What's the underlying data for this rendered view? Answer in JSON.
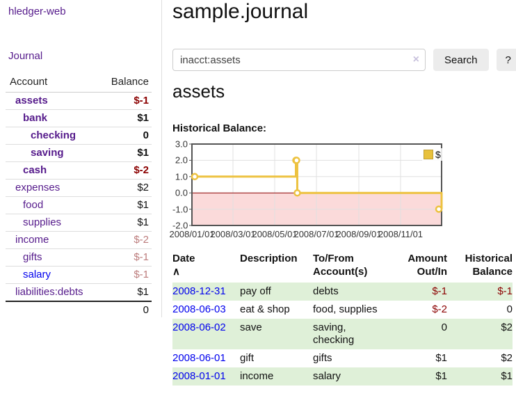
{
  "app": {
    "brand": "hledger-web",
    "nav_journal": "Journal"
  },
  "colors": {
    "link_purple": "#551a8b",
    "link_blue": "#0000ee",
    "negative_strong": "#8b0000",
    "negative_muted": "#bc7c7c",
    "row_green": "#dff0d8",
    "series_gold": "#edc240",
    "negative_region_pink": "#fbdada",
    "zero_line_red": "#8b0000"
  },
  "sidebar": {
    "header": {
      "account": "Account",
      "balance": "Balance"
    },
    "accounts": [
      {
        "name": "assets",
        "balance": "$-1",
        "level": 1,
        "bold": true,
        "balance_style": "neg"
      },
      {
        "name": "bank",
        "balance": "$1",
        "level": 2,
        "bold": true,
        "balance_style": "normal"
      },
      {
        "name": "checking",
        "balance": "0",
        "level": 3,
        "bold": true,
        "balance_style": "normal"
      },
      {
        "name": "saving",
        "balance": "$1",
        "level": 3,
        "bold": true,
        "balance_style": "normal"
      },
      {
        "name": "cash",
        "balance": "$-2",
        "level": 2,
        "bold": true,
        "balance_style": "neg"
      },
      {
        "name": "expenses",
        "balance": "$2",
        "level": 1,
        "bold": false,
        "balance_style": "normal"
      },
      {
        "name": "food",
        "balance": "$1",
        "level": 2,
        "bold": false,
        "balance_style": "normal"
      },
      {
        "name": "supplies",
        "balance": "$1",
        "level": 2,
        "bold": false,
        "balance_style": "normal"
      },
      {
        "name": "income",
        "balance": "$-2",
        "level": 1,
        "bold": false,
        "balance_style": "neg-muted"
      },
      {
        "name": "gifts",
        "balance": "$-1",
        "level": 2,
        "bold": false,
        "balance_style": "neg-muted"
      },
      {
        "name": "salary",
        "balance": "$-1",
        "level": 2,
        "bold": false,
        "balance_style": "neg-muted",
        "name_color": "#0000ee"
      },
      {
        "name": "liabilities:debts",
        "balance": "$1",
        "level": 1,
        "bold": false,
        "balance_style": "normal"
      }
    ],
    "total": "0"
  },
  "header": {
    "title": "sample.journal"
  },
  "search": {
    "value": "inacct:assets",
    "clear_icon": "×",
    "button": "Search",
    "help_button": "?"
  },
  "account_page": {
    "title": "assets",
    "chart_label": "Historical Balance:"
  },
  "chart_data": {
    "type": "line",
    "step": true,
    "title": "Historical Balance",
    "legend": "$",
    "legend_position": "top-right",
    "x_domain": [
      "2008-01-01",
      "2008-12-31"
    ],
    "x_ticks": [
      "2008/01/01",
      "2008/03/01",
      "2008/05/01",
      "2008/07/01",
      "2008/09/01",
      "2008/11/01"
    ],
    "y_ticks": [
      "3.0",
      "2.0",
      "1.0",
      "0.0",
      "-1.0",
      "-2.0"
    ],
    "ylim": [
      -2,
      3
    ],
    "grid": true,
    "series": [
      {
        "name": "$",
        "color": "#edc240",
        "points": [
          {
            "date": "2008-01-01",
            "value": 1
          },
          {
            "date": "2008-06-01",
            "value": 2
          },
          {
            "date": "2008-06-02",
            "value": 2
          },
          {
            "date": "2008-06-03",
            "value": 0
          },
          {
            "date": "2008-12-31",
            "value": -1
          }
        ]
      }
    ]
  },
  "table": {
    "headers": {
      "date": "Date",
      "sort_icon": "∧",
      "description": "Description",
      "to_from_line1": "To/From",
      "to_from_line2": "Account(s)",
      "amount_line1": "Amount",
      "amount_line2": "Out/In",
      "balance_line1": "Historical",
      "balance_line2": "Balance"
    },
    "rows": [
      {
        "date": "2008-12-31",
        "description": "pay off",
        "to_from": "debts",
        "amount": "$-1",
        "amount_neg": true,
        "balance": "$-1",
        "balance_neg": true
      },
      {
        "date": "2008-06-03",
        "description": "eat & shop",
        "to_from": "food, supplies",
        "amount": "$-2",
        "amount_neg": true,
        "balance": "0",
        "balance_neg": false
      },
      {
        "date": "2008-06-02",
        "description": "save",
        "to_from": "saving,\nchecking",
        "amount": "0",
        "amount_neg": false,
        "balance": "$2",
        "balance_neg": false
      },
      {
        "date": "2008-06-01",
        "description": "gift",
        "to_from": "gifts",
        "amount": "$1",
        "amount_neg": false,
        "balance": "$2",
        "balance_neg": false
      },
      {
        "date": "2008-01-01",
        "description": "income",
        "to_from": "salary",
        "amount": "$1",
        "amount_neg": false,
        "balance": "$1",
        "balance_neg": false
      }
    ]
  }
}
